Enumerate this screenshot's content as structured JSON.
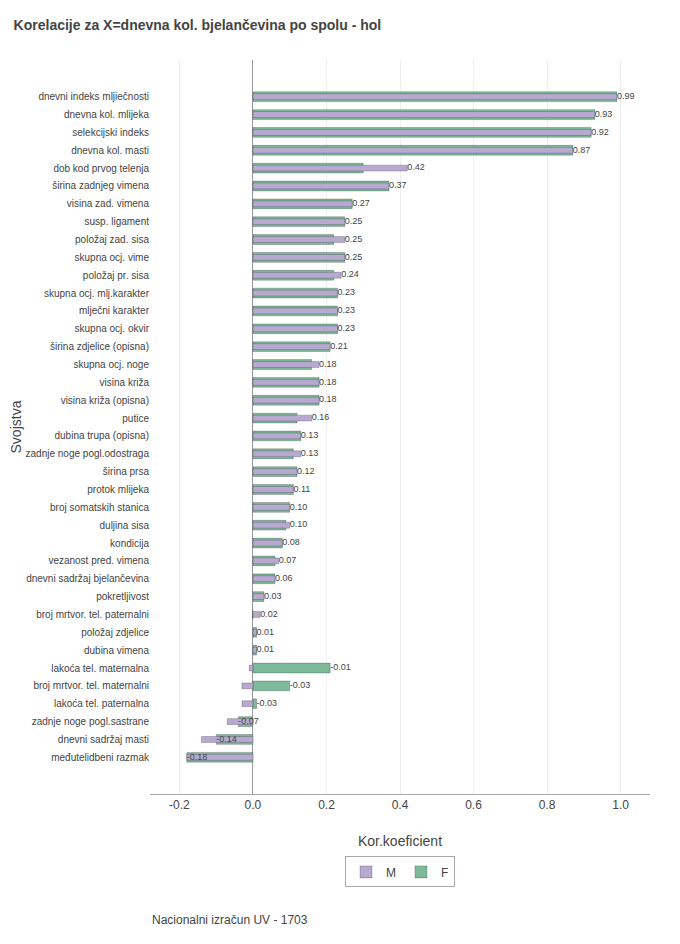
{
  "chart_data": {
    "type": "bar",
    "orientation": "horizontal",
    "title": "Korelacije za X=dnevna kol. bjelančevina po spolu - hol",
    "xlabel": "Kor.koeficient",
    "ylabel": "Svojstva",
    "annotations": [
      "Nacionalni izračun UV - 1703"
    ],
    "categories": [
      "dnevni indeks mljiečnosti",
      "dnevna kol. mlijeka",
      "selekcijski indeks",
      "dnevna kol. masti",
      "dob kod prvog telenja",
      "širina zadnjeg vimena",
      "visina zad. vimena",
      "susp. ligament",
      "položaj zad. sisa",
      "skupna ocj. vime",
      "položaj pr. sisa",
      "skupna ocj. mlj.karakter",
      "mlječni karakter",
      "skupna ocj. okvir",
      "širina zdjelice (opisna)",
      "skupna ocj. noge",
      "visina križa",
      "visina križa (opisna)",
      "putice",
      "dubina trupa (opisna)",
      "zadnje noge pogl.odostraga",
      "širina prsa",
      "protok mlijeka",
      "broj somatskih stanica",
      "duljina sisa",
      "kondicija",
      "vezanost pred. vimena",
      "dnevni sadržaj bjelančevina",
      "pokretljivost",
      "broj mrtvor. tel. paternalni",
      "položaj zdjelice",
      "dubina vimena",
      "lakoća tel. maternalna",
      "broj mrtvor. tel. maternalni",
      "lakoća tel. paternalna",
      "zadnje noge pogl.sastrane",
      "dnevni sadržaj masti",
      "međutelidbeni razmak"
    ],
    "series": [
      {
        "name": "M",
        "color": "#b8a9d0",
        "values": [
          0.99,
          0.93,
          0.92,
          0.87,
          0.42,
          0.37,
          0.27,
          0.25,
          0.25,
          0.25,
          0.24,
          0.23,
          0.23,
          0.23,
          0.21,
          0.18,
          0.18,
          0.18,
          0.16,
          0.13,
          0.13,
          0.12,
          0.11,
          0.1,
          0.1,
          0.08,
          0.07,
          0.06,
          0.03,
          0.02,
          0.01,
          0.01,
          -0.01,
          -0.03,
          -0.03,
          -0.07,
          -0.14,
          -0.18
        ],
        "value_labels": [
          "0.99",
          "0.93",
          "0.92",
          "0.87",
          "0.42",
          "0.37",
          "0.27",
          "0.25",
          "0.25",
          "0.25",
          "0.24",
          "0.23",
          "0.23",
          "0.23",
          "0.21",
          "0.18",
          "0.18",
          "0.18",
          "0.16",
          "0.13",
          "0.13",
          "0.12",
          "0.11",
          "0.10",
          "0.10",
          "0.08",
          "0.07",
          "0.06",
          "0.03",
          "0.02",
          "0.01",
          "0.01",
          "-0.01",
          "-0.03",
          "-0.03",
          "-0.07",
          "-0.14",
          "-0.18"
        ]
      },
      {
        "name": "F",
        "color": "#7dba9a",
        "values": [
          0.99,
          0.93,
          0.92,
          0.87,
          0.3,
          0.37,
          0.27,
          0.25,
          0.22,
          0.25,
          0.22,
          0.23,
          0.23,
          0.23,
          0.21,
          0.16,
          0.18,
          0.18,
          0.12,
          0.13,
          0.11,
          0.12,
          0.11,
          0.1,
          0.09,
          0.08,
          0.06,
          0.06,
          0.03,
          0.0,
          0.01,
          0.01,
          0.21,
          0.1,
          0.01,
          -0.04,
          -0.1,
          -0.18
        ]
      }
    ],
    "xlim": [
      -0.28,
      1.08
    ],
    "xticks": [
      -0.2,
      {
        "value": 0,
        "label": "0.0"
      },
      0.2,
      0.4,
      0.6,
      0.8,
      {
        "value": 1,
        "label": "1.0"
      }
    ],
    "grid": true,
    "legend": "lower center",
    "data_labels": true
  }
}
